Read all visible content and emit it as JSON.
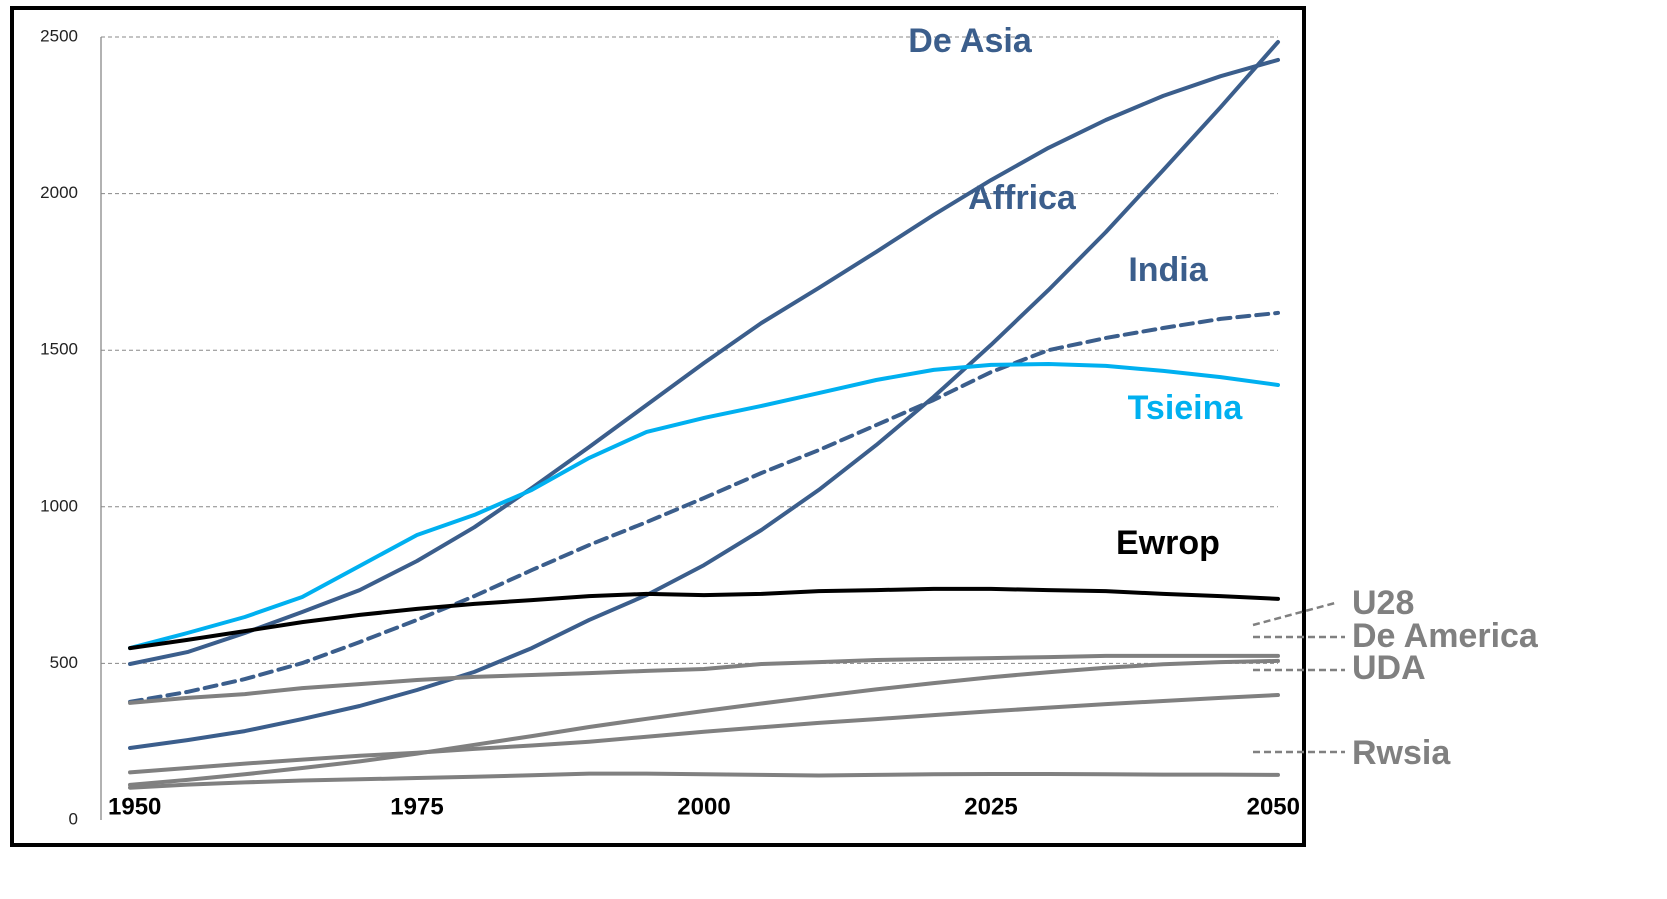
{
  "chart_data": {
    "type": "line",
    "x": [
      1950,
      1955,
      1960,
      1965,
      1970,
      1975,
      1980,
      1985,
      1990,
      1995,
      2000,
      2005,
      2010,
      2015,
      2020,
      2025,
      2030,
      2035,
      2040,
      2045,
      2050
    ],
    "xlim": [
      1950,
      2050
    ],
    "xticks": [
      1950,
      1975,
      2000,
      2025,
      2050
    ],
    "ylim": [
      0,
      2500
    ],
    "yticks": [
      0,
      500,
      1000,
      1500,
      2000,
      2500
    ],
    "grid": true,
    "series": [
      {
        "name": "De Asia",
        "color": "#3b5e8c",
        "dashed": false,
        "values": [
          498,
          536,
          597,
          664,
          734,
          827,
          935,
          1060,
          1191,
          1325,
          1459,
          1587,
          1699,
          1814,
          1932,
          2043,
          2146,
          2235,
          2312,
          2375,
          2427
        ]
      },
      {
        "name": "Affrica",
        "color": "#3b5e8c",
        "dashed": false,
        "values": [
          230,
          255,
          284,
          322,
          364,
          415,
          473,
          549,
          639,
          718,
          814,
          926,
          1054,
          1197,
          1351,
          1517,
          1692,
          1877,
          2075,
          2276,
          2484
        ]
      },
      {
        "name": "India",
        "color": "#3b5e8c",
        "dashed": true,
        "values": [
          377,
          409,
          450,
          501,
          568,
          639,
          715,
          798,
          878,
          951,
          1028,
          1108,
          1181,
          1261,
          1341,
          1430,
          1500,
          1539,
          1571,
          1600,
          1619
        ]
      },
      {
        "name": "Tsieina",
        "color": "#00b0f0",
        "dashed": false,
        "values": [
          549,
          597,
          648,
          712,
          811,
          910,
          974,
          1054,
          1156,
          1239,
          1284,
          1322,
          1363,
          1405,
          1437,
          1453,
          1456,
          1450,
          1434,
          1414,
          1389
        ]
      },
      {
        "name": "Ewrop",
        "color": "#000000",
        "dashed": false,
        "values": [
          549,
          575,
          603,
          632,
          655,
          674,
          690,
          702,
          715,
          722,
          718,
          722,
          731,
          734,
          738,
          738,
          734,
          731,
          722,
          715,
          706
        ]
      },
      {
        "name": "U28",
        "color": "#808080",
        "dashed": false,
        "values": [
          374,
          390,
          402,
          421,
          434,
          447,
          457,
          463,
          469,
          476,
          482,
          498,
          504,
          511,
          514,
          517,
          520,
          524,
          524,
          524,
          524
        ]
      },
      {
        "name": "De America",
        "color": "#808080",
        "dashed": false,
        "values": [
          112,
          128,
          146,
          166,
          187,
          212,
          240,
          268,
          297,
          323,
          348,
          372,
          395,
          417,
          437,
          456,
          472,
          486,
          497,
          504,
          508
        ]
      },
      {
        "name": "UDA",
        "color": "#808080",
        "dashed": false,
        "values": [
          152,
          166,
          180,
          193,
          205,
          215,
          227,
          238,
          250,
          266,
          282,
          296,
          310,
          322,
          335,
          347,
          359,
          370,
          380,
          390,
          399
        ]
      },
      {
        "name": "Rwsia",
        "color": "#808080",
        "dashed": false,
        "values": [
          103,
          113,
          120,
          126,
          130,
          134,
          138,
          143,
          148,
          148,
          146,
          144,
          142,
          144,
          146,
          147,
          147,
          146,
          145,
          145,
          144
        ]
      }
    ]
  }
}
